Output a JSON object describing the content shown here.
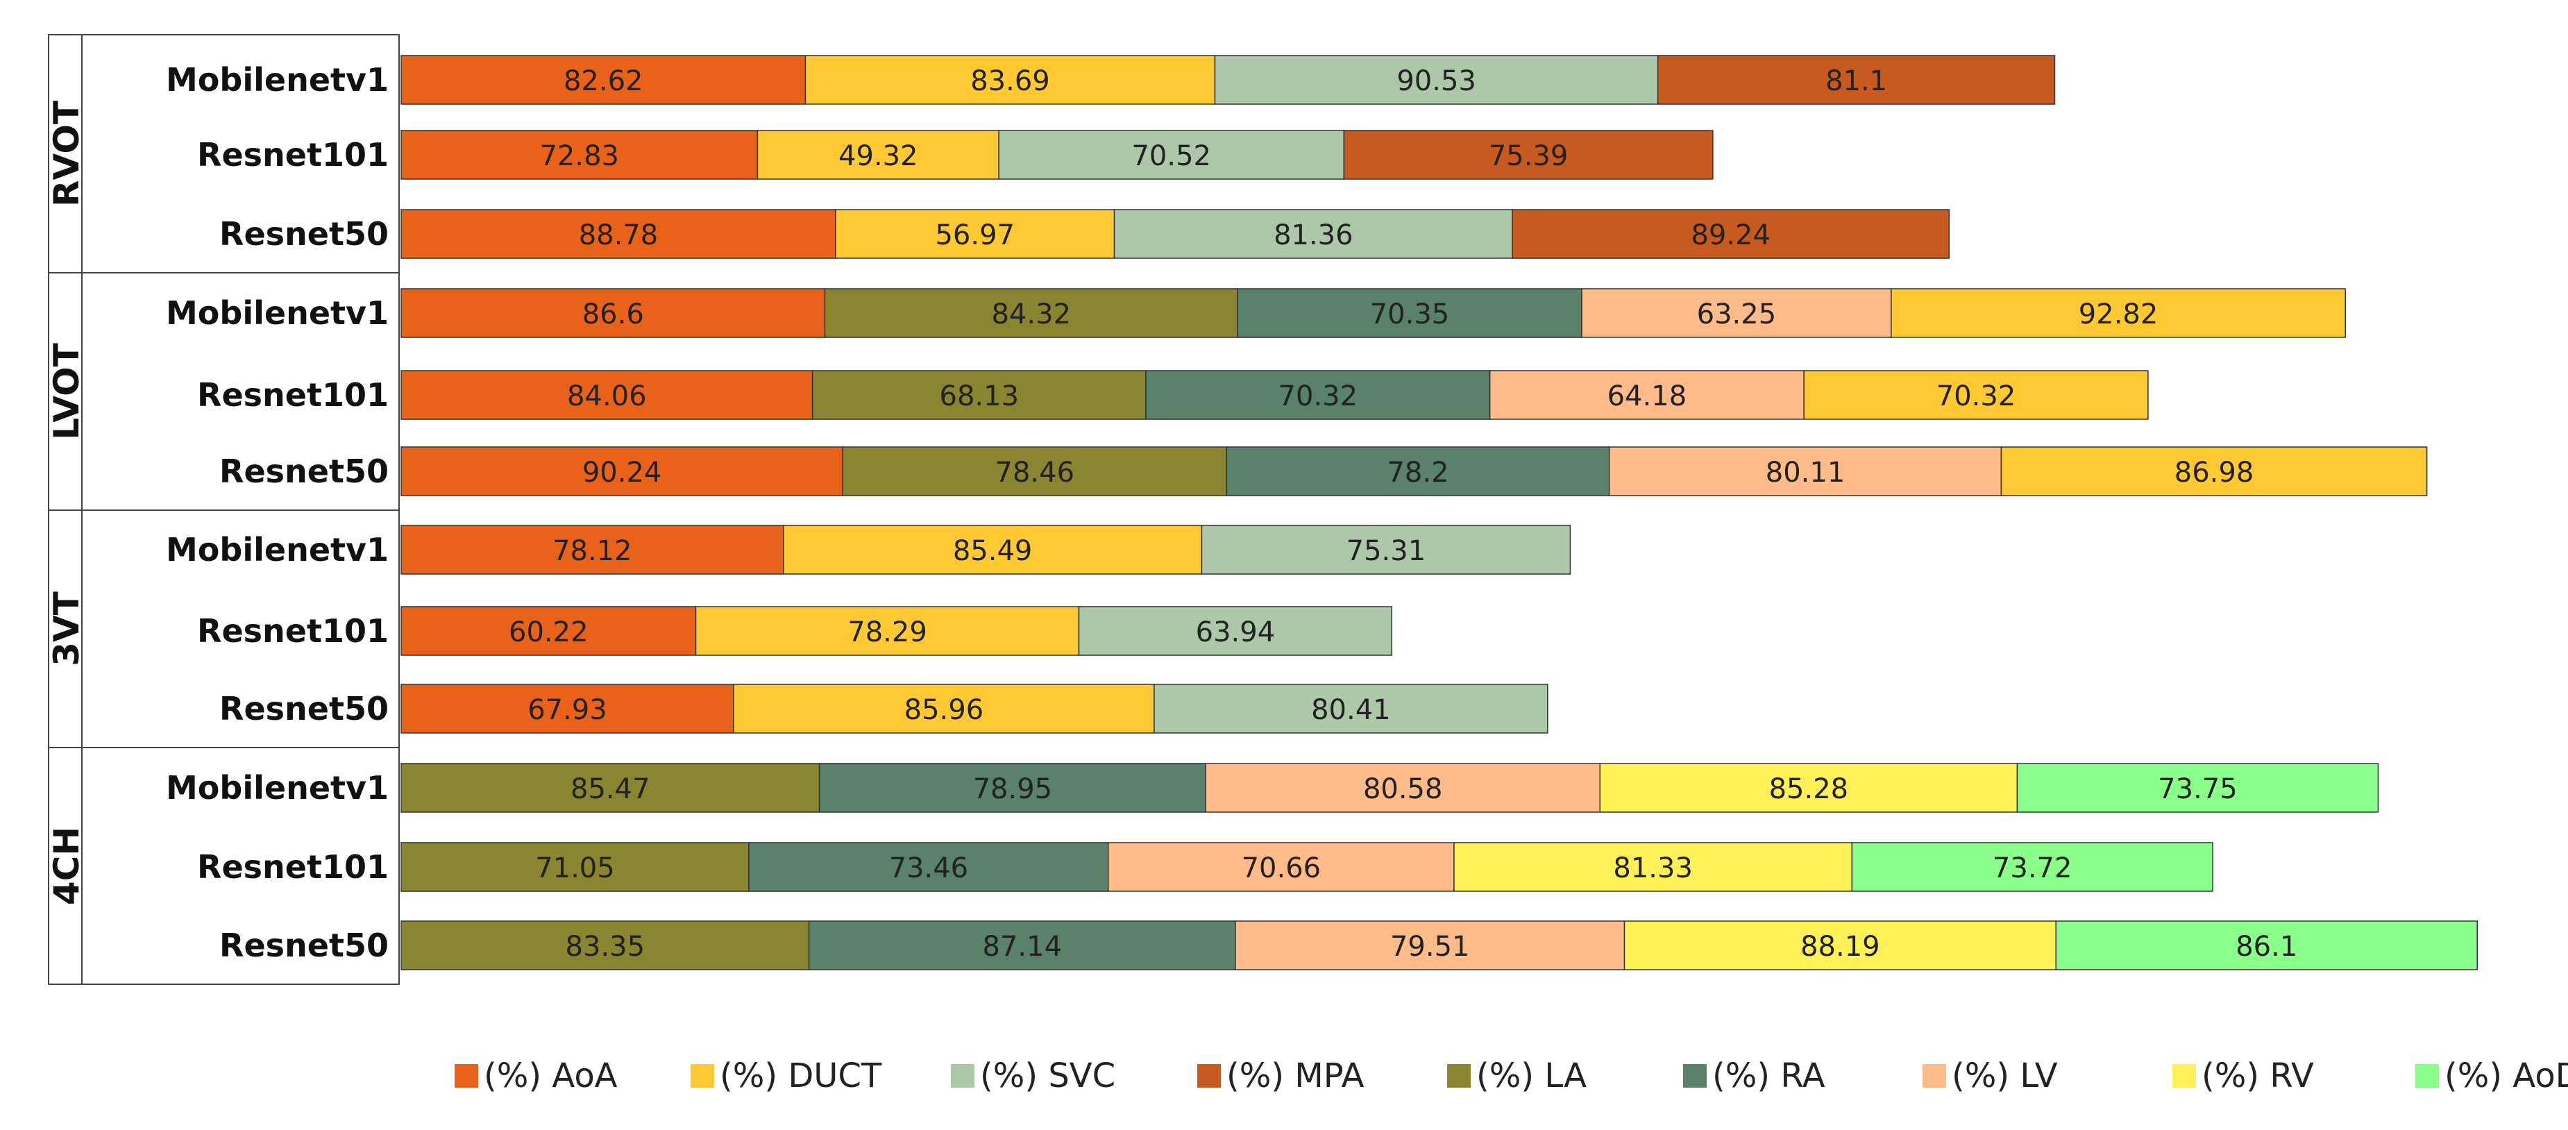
{
  "chart_data": {
    "type": "bar",
    "orientation": "horizontal",
    "stacked": true,
    "legend_position": "bottom",
    "grid": false,
    "series_meta": [
      {
        "name": "(%) AoA",
        "color": "#E8621A"
      },
      {
        "name": "(%) DUCT",
        "color": "#FFC934"
      },
      {
        "name": "(%) SVC",
        "color": "#ADC7A9"
      },
      {
        "name": "(%) MPA",
        "color": "#C75B1F"
      },
      {
        "name": "(%) LA",
        "color": "#8A8530"
      },
      {
        "name": "(%) RA",
        "color": "#5A8169"
      },
      {
        "name": "(%) LV",
        "color": "#FFBC8A"
      },
      {
        "name": "(%) RV",
        "color": "#FFF157"
      },
      {
        "name": "(%) AoD",
        "color": "#8AFF8A"
      }
    ],
    "groups": [
      {
        "name": "RVOT",
        "rows": [
          {
            "model": "Mobilenetv1",
            "segments": [
              {
                "series": "(%) AoA",
                "value": 82.62
              },
              {
                "series": "(%) DUCT",
                "value": 83.69
              },
              {
                "series": "(%) SVC",
                "value": 90.53
              },
              {
                "series": "(%) MPA",
                "value": 81.1
              }
            ]
          },
          {
            "model": "Resnet101",
            "segments": [
              {
                "series": "(%) AoA",
                "value": 72.83
              },
              {
                "series": "(%) DUCT",
                "value": 49.32
              },
              {
                "series": "(%) SVC",
                "value": 70.52
              },
              {
                "series": "(%) MPA",
                "value": 75.39
              }
            ]
          },
          {
            "model": "Resnet50",
            "segments": [
              {
                "series": "(%) AoA",
                "value": 88.78
              },
              {
                "series": "(%) DUCT",
                "value": 56.97
              },
              {
                "series": "(%) SVC",
                "value": 81.36
              },
              {
                "series": "(%) MPA",
                "value": 89.24
              }
            ]
          }
        ]
      },
      {
        "name": "LVOT",
        "rows": [
          {
            "model": "Mobilenetv1",
            "segments": [
              {
                "series": "(%) AoA",
                "value": 86.6
              },
              {
                "series": "(%) LA",
                "value": 84.32
              },
              {
                "series": "(%) RA",
                "value": 70.35
              },
              {
                "series": "(%) LV",
                "value": 63.25
              },
              {
                "series": "(%) DUCT",
                "value": 92.82
              }
            ]
          },
          {
            "model": "Resnet101",
            "segments": [
              {
                "series": "(%) AoA",
                "value": 84.06
              },
              {
                "series": "(%) LA",
                "value": 68.13
              },
              {
                "series": "(%) RA",
                "value": 70.32
              },
              {
                "series": "(%) LV",
                "value": 64.18
              },
              {
                "series": "(%) DUCT",
                "value": 70.32
              }
            ]
          },
          {
            "model": "Resnet50",
            "segments": [
              {
                "series": "(%) AoA",
                "value": 90.24
              },
              {
                "series": "(%) LA",
                "value": 78.46
              },
              {
                "series": "(%) RA",
                "value": 78.2
              },
              {
                "series": "(%) LV",
                "value": 80.11
              },
              {
                "series": "(%) DUCT",
                "value": 86.98
              }
            ]
          }
        ]
      },
      {
        "name": "3VT",
        "rows": [
          {
            "model": "Mobilenetv1",
            "segments": [
              {
                "series": "(%) AoA",
                "value": 78.12
              },
              {
                "series": "(%) DUCT",
                "value": 85.49
              },
              {
                "series": "(%) SVC",
                "value": 75.31
              }
            ]
          },
          {
            "model": "Resnet101",
            "segments": [
              {
                "series": "(%) AoA",
                "value": 60.22
              },
              {
                "series": "(%) DUCT",
                "value": 78.29
              },
              {
                "series": "(%) SVC",
                "value": 63.94
              }
            ]
          },
          {
            "model": "Resnet50",
            "segments": [
              {
                "series": "(%) AoA",
                "value": 67.93
              },
              {
                "series": "(%) DUCT",
                "value": 85.96
              },
              {
                "series": "(%) SVC",
                "value": 80.41
              }
            ]
          }
        ]
      },
      {
        "name": "4CH",
        "rows": [
          {
            "model": "Mobilenetv1",
            "segments": [
              {
                "series": "(%) LA",
                "value": 85.47
              },
              {
                "series": "(%) RA",
                "value": 78.95
              },
              {
                "series": "(%) LV",
                "value": 80.58
              },
              {
                "series": "(%) RV",
                "value": 85.28
              },
              {
                "series": "(%) AoD",
                "value": 73.75
              }
            ]
          },
          {
            "model": "Resnet101",
            "segments": [
              {
                "series": "(%) LA",
                "value": 71.05
              },
              {
                "series": "(%) RA",
                "value": 73.46
              },
              {
                "series": "(%) LV",
                "value": 70.66
              },
              {
                "series": "(%) RV",
                "value": 81.33
              },
              {
                "series": "(%) AoD",
                "value": 73.72
              }
            ]
          },
          {
            "model": "Resnet50",
            "segments": [
              {
                "series": "(%) LA",
                "value": 83.35
              },
              {
                "series": "(%) RA",
                "value": 87.14
              },
              {
                "series": "(%) LV",
                "value": 79.51
              },
              {
                "series": "(%) RV",
                "value": 88.19
              },
              {
                "series": "(%) AoD",
                "value": 86.1
              }
            ]
          }
        ]
      }
    ]
  }
}
